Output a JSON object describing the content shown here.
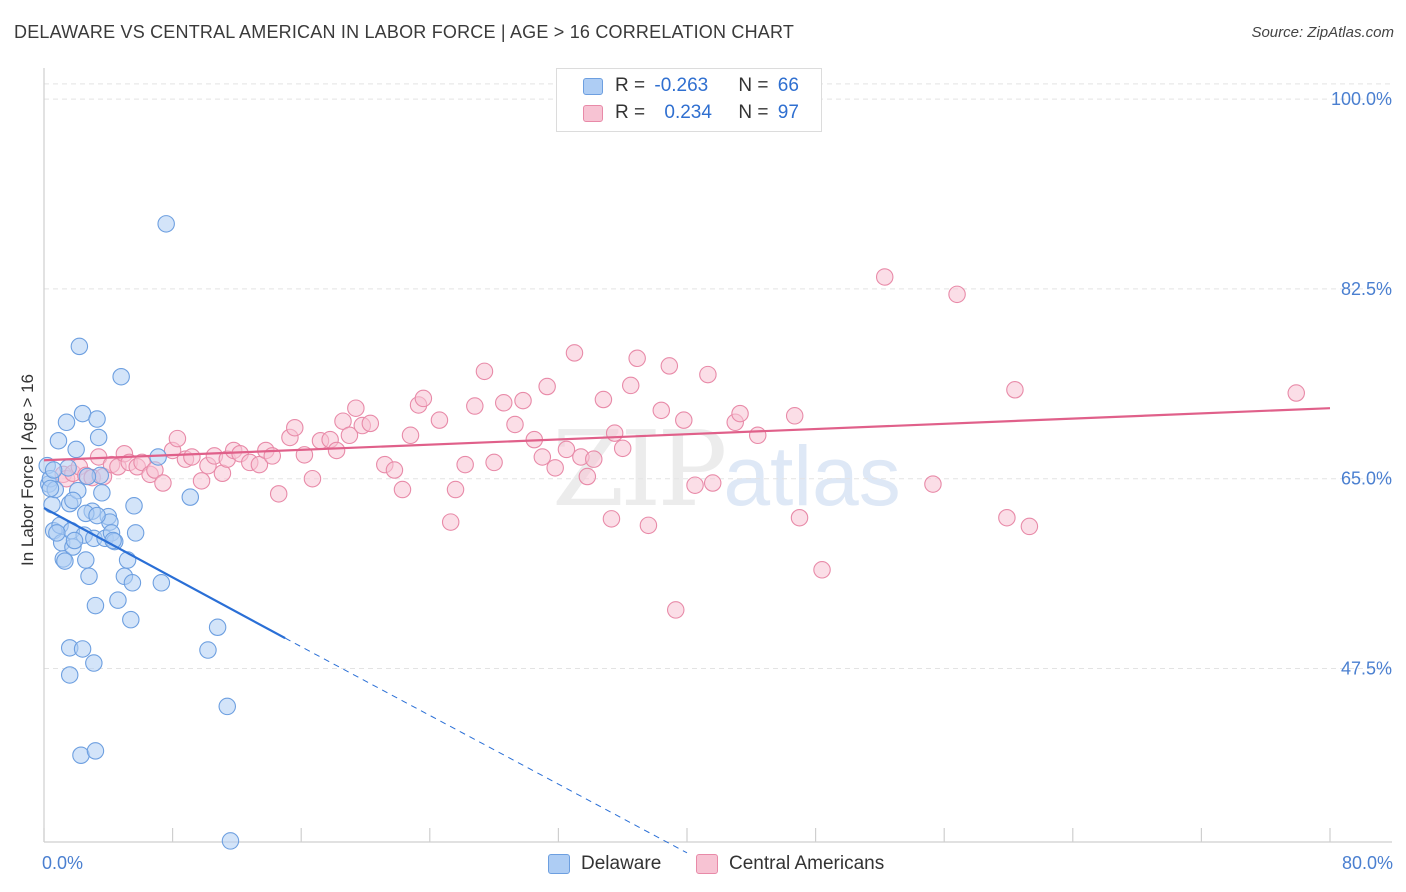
{
  "header": {
    "title": "DELAWARE VS CENTRAL AMERICAN IN LABOR FORCE | AGE > 16 CORRELATION CHART",
    "source": "Source: ZipAtlas.com"
  },
  "legend": {
    "rows": [
      {
        "r_label": "R = ",
        "r_value": "-0.263",
        "n_label": "N = ",
        "n_value": "66"
      },
      {
        "r_label": "R = ",
        "r_value": "0.234",
        "n_label": "N = ",
        "n_value": "97"
      }
    ]
  },
  "watermark": {
    "zip": "ZIP",
    "atlas": "atlas"
  },
  "colors": {
    "blue_fill": "#aecdf4",
    "blue_stroke": "#6d9fe0",
    "blue_line": "#2a6fd6",
    "pink_fill": "#f7c3d3",
    "pink_stroke": "#e88aa8",
    "pink_line": "#e0608a",
    "grid": "#e3e3e3",
    "axis_text": "#4a7fd0"
  },
  "chart_data": {
    "type": "scatter",
    "title": "DELAWARE VS CENTRAL AMERICAN IN LABOR FORCE | AGE > 16 CORRELATION CHART",
    "xlabel": "",
    "ylabel": "In Labor Force | Age > 16",
    "xlim": [
      0,
      80
    ],
    "ylim": [
      31.5,
      102.5
    ],
    "x_tick_labels": [
      "0.0%",
      "80.0%"
    ],
    "y_ticks": [
      47.5,
      65.0,
      82.5,
      100.0
    ],
    "y_tick_labels": [
      "47.5%",
      "65.0%",
      "82.5%",
      "100.0%"
    ],
    "legend_position": "bottom-center",
    "series": [
      {
        "name": "Delaware",
        "color": "blue",
        "R": -0.263,
        "N": 66,
        "trend": {
          "x0": 0,
          "y0": 62.3,
          "x1": 15,
          "y1": 50.3,
          "dashed_to_x": 40,
          "dashed_to_y": 30.5
        },
        "points": [
          [
            0.2,
            66.2
          ],
          [
            0.3,
            64.5
          ],
          [
            0.5,
            62.6
          ],
          [
            0.6,
            60.2
          ],
          [
            0.4,
            65.0
          ],
          [
            0.7,
            64.0
          ],
          [
            0.9,
            68.5
          ],
          [
            1.0,
            60.7
          ],
          [
            1.1,
            59.1
          ],
          [
            1.2,
            57.6
          ],
          [
            1.4,
            70.2
          ],
          [
            1.5,
            66.0
          ],
          [
            1.6,
            62.7
          ],
          [
            1.7,
            60.2
          ],
          [
            1.8,
            58.7
          ],
          [
            2.0,
            67.7
          ],
          [
            2.1,
            63.9
          ],
          [
            2.2,
            77.2
          ],
          [
            2.4,
            71.0
          ],
          [
            2.5,
            59.8
          ],
          [
            2.6,
            57.5
          ],
          [
            2.8,
            56.0
          ],
          [
            3.0,
            62.0
          ],
          [
            3.1,
            59.5
          ],
          [
            3.2,
            53.3
          ],
          [
            3.3,
            70.5
          ],
          [
            3.4,
            68.8
          ],
          [
            3.5,
            65.3
          ],
          [
            3.6,
            63.7
          ],
          [
            3.8,
            59.5
          ],
          [
            4.0,
            61.5
          ],
          [
            4.1,
            61.0
          ],
          [
            4.2,
            60.0
          ],
          [
            4.4,
            59.2
          ],
          [
            4.6,
            53.8
          ],
          [
            4.8,
            74.4
          ],
          [
            5.0,
            56.0
          ],
          [
            5.2,
            57.5
          ],
          [
            5.4,
            52.0
          ],
          [
            5.5,
            55.4
          ],
          [
            5.6,
            62.5
          ],
          [
            5.7,
            60.0
          ],
          [
            1.3,
            57.4
          ],
          [
            1.6,
            49.4
          ],
          [
            1.6,
            46.9
          ],
          [
            2.4,
            49.3
          ],
          [
            2.3,
            39.5
          ],
          [
            3.2,
            39.9
          ],
          [
            3.1,
            48.0
          ],
          [
            7.6,
            88.5
          ],
          [
            7.3,
            55.4
          ],
          [
            9.1,
            63.3
          ],
          [
            10.2,
            49.2
          ],
          [
            10.8,
            51.3
          ],
          [
            11.4,
            44.0
          ],
          [
            11.6,
            31.6
          ],
          [
            7.1,
            67.0
          ],
          [
            1.8,
            63.0
          ],
          [
            2.6,
            61.8
          ],
          [
            1.9,
            59.3
          ],
          [
            0.8,
            60.0
          ],
          [
            3.3,
            61.6
          ],
          [
            4.3,
            59.3
          ],
          [
            0.6,
            65.8
          ],
          [
            0.4,
            64.1
          ],
          [
            2.7,
            65.2
          ]
        ]
      },
      {
        "name": "Central Americans",
        "color": "pink",
        "R": 0.234,
        "N": 97,
        "trend": {
          "x0": 0,
          "y0": 66.7,
          "x1": 80,
          "y1": 71.5
        },
        "points": [
          [
            1.2,
            65.4
          ],
          [
            1.4,
            65.0
          ],
          [
            1.8,
            65.5
          ],
          [
            2.2,
            66.1
          ],
          [
            2.6,
            65.3
          ],
          [
            3.0,
            65.1
          ],
          [
            3.4,
            67.0
          ],
          [
            3.7,
            65.2
          ],
          [
            4.2,
            66.3
          ],
          [
            4.6,
            66.1
          ],
          [
            5.0,
            67.3
          ],
          [
            5.3,
            66.5
          ],
          [
            5.8,
            66.1
          ],
          [
            6.1,
            66.5
          ],
          [
            6.6,
            65.4
          ],
          [
            6.9,
            65.8
          ],
          [
            7.4,
            64.6
          ],
          [
            8.0,
            67.6
          ],
          [
            8.3,
            68.7
          ],
          [
            8.8,
            66.8
          ],
          [
            9.2,
            67.0
          ],
          [
            9.8,
            64.8
          ],
          [
            10.2,
            66.2
          ],
          [
            10.6,
            67.1
          ],
          [
            11.1,
            65.5
          ],
          [
            11.4,
            66.8
          ],
          [
            11.8,
            67.6
          ],
          [
            12.2,
            67.3
          ],
          [
            12.8,
            66.5
          ],
          [
            13.4,
            66.3
          ],
          [
            13.8,
            67.6
          ],
          [
            14.2,
            67.1
          ],
          [
            14.6,
            63.6
          ],
          [
            15.3,
            68.8
          ],
          [
            15.6,
            69.7
          ],
          [
            16.2,
            67.2
          ],
          [
            16.7,
            65.0
          ],
          [
            17.2,
            68.5
          ],
          [
            17.8,
            68.6
          ],
          [
            18.2,
            67.6
          ],
          [
            18.6,
            70.3
          ],
          [
            19.0,
            69.0
          ],
          [
            19.4,
            71.5
          ],
          [
            19.8,
            69.9
          ],
          [
            20.3,
            70.1
          ],
          [
            21.2,
            66.3
          ],
          [
            21.8,
            65.8
          ],
          [
            22.3,
            64.0
          ],
          [
            22.8,
            69.0
          ],
          [
            23.3,
            71.8
          ],
          [
            23.6,
            72.4
          ],
          [
            24.6,
            70.4
          ],
          [
            25.3,
            61.0
          ],
          [
            25.6,
            64.0
          ],
          [
            26.2,
            66.3
          ],
          [
            26.8,
            71.7
          ],
          [
            27.4,
            74.9
          ],
          [
            28.0,
            66.5
          ],
          [
            28.6,
            72.0
          ],
          [
            29.3,
            70.0
          ],
          [
            29.8,
            72.2
          ],
          [
            30.5,
            68.6
          ],
          [
            31.0,
            67.0
          ],
          [
            31.3,
            73.5
          ],
          [
            31.8,
            66.0
          ],
          [
            32.5,
            67.7
          ],
          [
            33.0,
            76.6
          ],
          [
            33.4,
            67.0
          ],
          [
            33.8,
            65.2
          ],
          [
            34.2,
            66.8
          ],
          [
            34.8,
            72.3
          ],
          [
            35.5,
            69.2
          ],
          [
            35.3,
            61.3
          ],
          [
            36.0,
            67.8
          ],
          [
            36.5,
            73.6
          ],
          [
            36.9,
            76.1
          ],
          [
            37.6,
            60.7
          ],
          [
            38.4,
            71.3
          ],
          [
            38.9,
            75.4
          ],
          [
            39.3,
            52.9
          ],
          [
            39.8,
            70.4
          ],
          [
            40.5,
            64.4
          ],
          [
            41.3,
            74.6
          ],
          [
            41.6,
            64.6
          ],
          [
            43.0,
            70.2
          ],
          [
            43.3,
            71.0
          ],
          [
            44.4,
            69.0
          ],
          [
            46.7,
            70.8
          ],
          [
            47.0,
            61.4
          ],
          [
            48.4,
            56.6
          ],
          [
            52.3,
            83.6
          ],
          [
            55.3,
            64.5
          ],
          [
            56.8,
            82.0
          ],
          [
            59.9,
            61.4
          ],
          [
            60.4,
            73.2
          ],
          [
            61.3,
            60.6
          ],
          [
            77.9,
            72.9
          ]
        ]
      }
    ]
  }
}
